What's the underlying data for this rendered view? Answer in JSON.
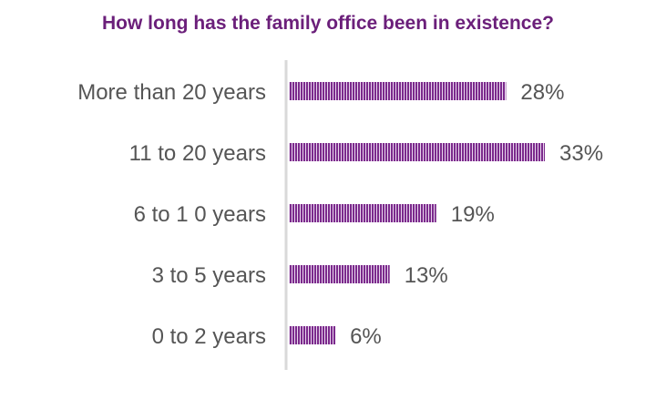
{
  "chart_data": {
    "type": "bar",
    "orientation": "horizontal",
    "title": "How long has the family office been in existence?",
    "categories": [
      "More than 20 years",
      "11 to 20 years",
      "6 to 1 0 years",
      "3 to 5 years",
      "0 to 2 years"
    ],
    "values": [
      28,
      33,
      19,
      13,
      6
    ],
    "value_labels": [
      "28%",
      "33%",
      "19%",
      "13%",
      "6%"
    ],
    "unit": "%",
    "xlim": [
      0,
      33
    ],
    "grid": false,
    "legend": "none",
    "colors": {
      "bar": "#7b2a8c",
      "bar_stripe": "#ffffff",
      "axis": "#d9d9d9",
      "title": "#6b1f7a",
      "text": "#555555"
    }
  }
}
